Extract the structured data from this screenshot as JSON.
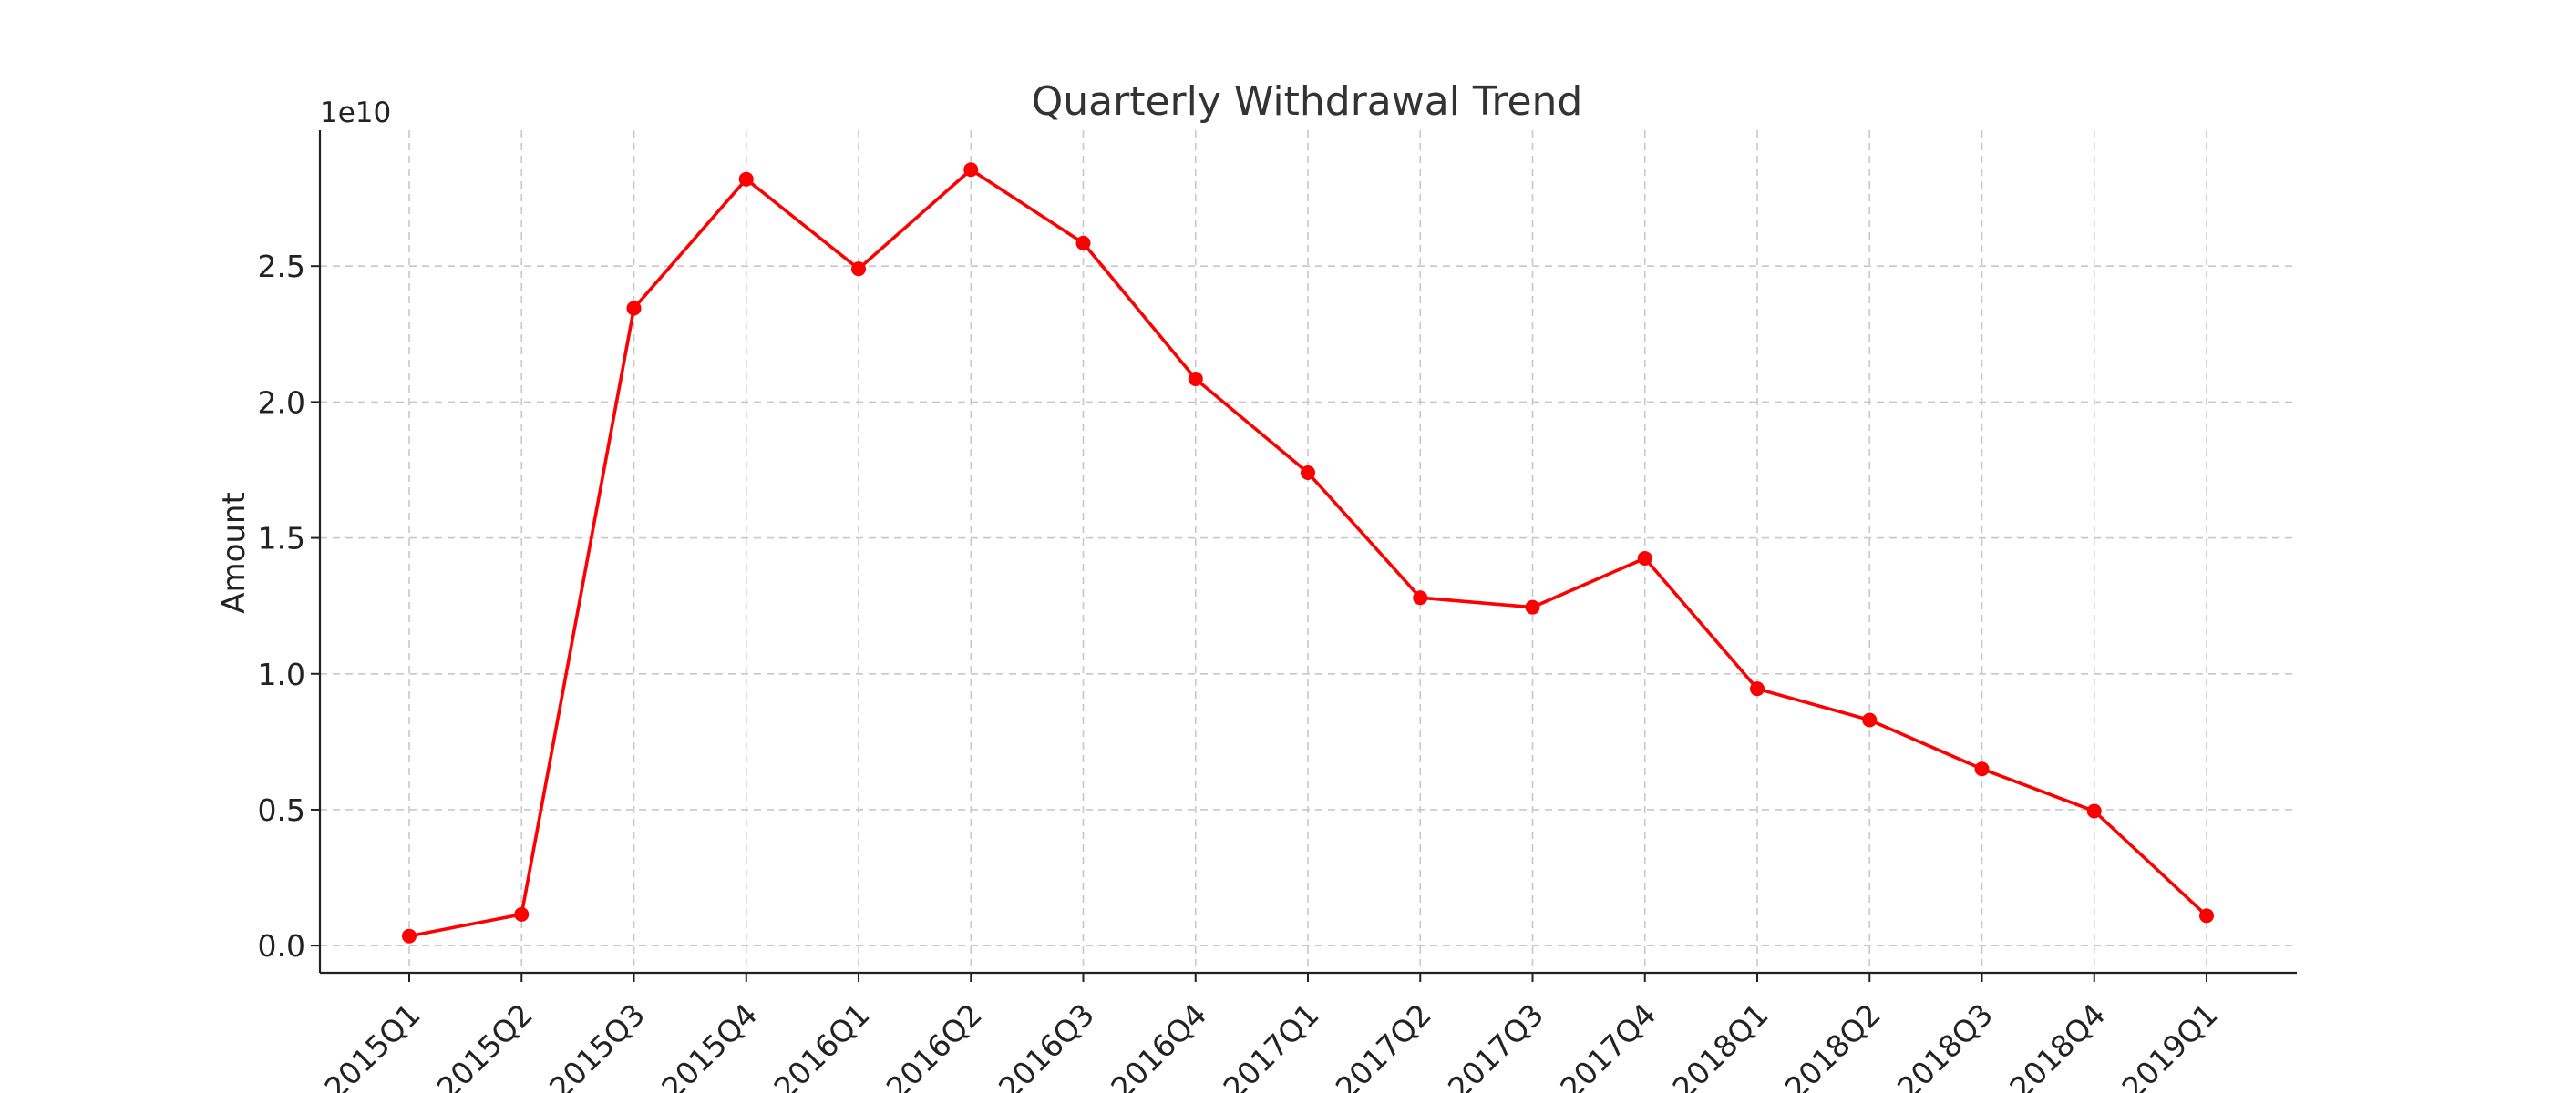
{
  "chart_data": {
    "type": "line",
    "title": "Quarterly Withdrawal Trend",
    "xlabel": "",
    "ylabel": "Amount",
    "y_offset_label": "1e10",
    "y_scale": 10000000000,
    "categories": [
      "2015Q1",
      "2015Q2",
      "2015Q3",
      "2015Q4",
      "2016Q1",
      "2016Q2",
      "2016Q3",
      "2016Q4",
      "2017Q1",
      "2017Q2",
      "2017Q3",
      "2017Q4",
      "2018Q1",
      "2018Q2",
      "2018Q3",
      "2018Q4",
      "2019Q1"
    ],
    "series": [
      {
        "name": "",
        "color": "#ff0000",
        "marker": "circle",
        "values": [
          350000000,
          1150000000,
          23450000000,
          28200000000,
          24900000000,
          28550000000,
          25850000000,
          20850000000,
          17400000000,
          12800000000,
          12450000000,
          14250000000,
          9450000000,
          8300000000,
          6500000000,
          4950000000,
          1100000000
        ]
      }
    ],
    "y_ticks": [
      0.0,
      0.5,
      1.0,
      1.5,
      2.0,
      2.5
    ],
    "y_tick_labels": [
      "0.0",
      "0.5",
      "1.0",
      "1.5",
      "2.0",
      "2.5"
    ],
    "ylim": [
      -1000000000,
      30000000000
    ],
    "grid": true,
    "legend": "none"
  }
}
